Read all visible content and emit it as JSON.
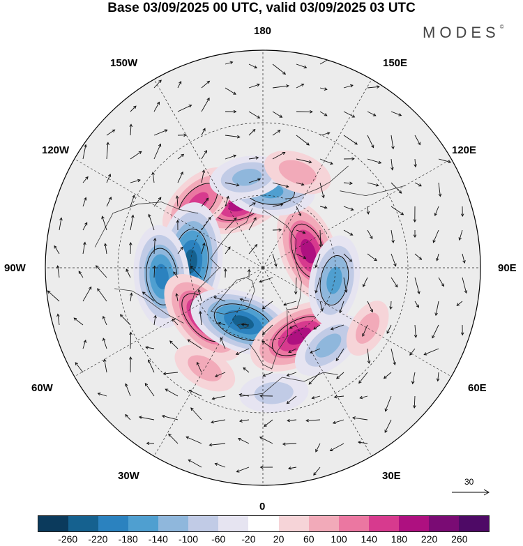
{
  "header": {
    "title": "Base 03/09/2025 00 UTC, valid 03/09/2025 03 UTC",
    "brand": "MODES",
    "brand_mark": "©"
  },
  "map": {
    "projection": "north-polar-stereographic",
    "longitude_labels": {
      "top": "180",
      "top_left": "150W",
      "top_right": "150E",
      "upper_left": "120W",
      "upper_right": "120E",
      "left": "90W",
      "right": "90E",
      "lower_left": "60W",
      "lower_right": "60E",
      "bottom_left": "30W",
      "bottom_right": "30E",
      "bottom": "0"
    },
    "vector_reference": "30"
  },
  "legend": {
    "levels": [
      "-260",
      "-220",
      "-180",
      "-140",
      "-100",
      "-60",
      "-20",
      "20",
      "60",
      "100",
      "140",
      "180",
      "220",
      "260"
    ],
    "colors": [
      "#0b3a5c",
      "#15618f",
      "#2b82bf",
      "#4f9fd0",
      "#8fb7dc",
      "#c1cbe6",
      "#e6e4f1",
      "#ffffff",
      "#f6d4d8",
      "#f2aab9",
      "#eb77a1",
      "#d73a8e",
      "#ae1080",
      "#7a0b74",
      "#4e0a66"
    ]
  },
  "anomalies": [
    {
      "lon": -160,
      "lat": 62,
      "value": 180
    },
    {
      "lon": -135,
      "lat": 52,
      "value": 150
    },
    {
      "lon": -95,
      "lat": 60,
      "value": -250
    },
    {
      "lon": -85,
      "lat": 48,
      "value": -200
    },
    {
      "lon": -50,
      "lat": 58,
      "value": 200
    },
    {
      "lon": -20,
      "lat": 66,
      "value": -220
    },
    {
      "lon": 28,
      "lat": 58,
      "value": 210
    },
    {
      "lon": 40,
      "lat": 48,
      "value": -120
    },
    {
      "lon": 110,
      "lat": 70,
      "value": 200
    },
    {
      "lon": 80,
      "lat": 60,
      "value": -160
    },
    {
      "lon": 175,
      "lat": 58,
      "value": -160
    },
    {
      "lon": -170,
      "lat": 52,
      "value": -110
    },
    {
      "lon": 160,
      "lat": 48,
      "value": 90
    },
    {
      "lon": 60,
      "lat": 40,
      "value": 60
    },
    {
      "lon": -30,
      "lat": 42,
      "value": 80
    },
    {
      "lon": 5,
      "lat": 38,
      "value": -90
    }
  ]
}
